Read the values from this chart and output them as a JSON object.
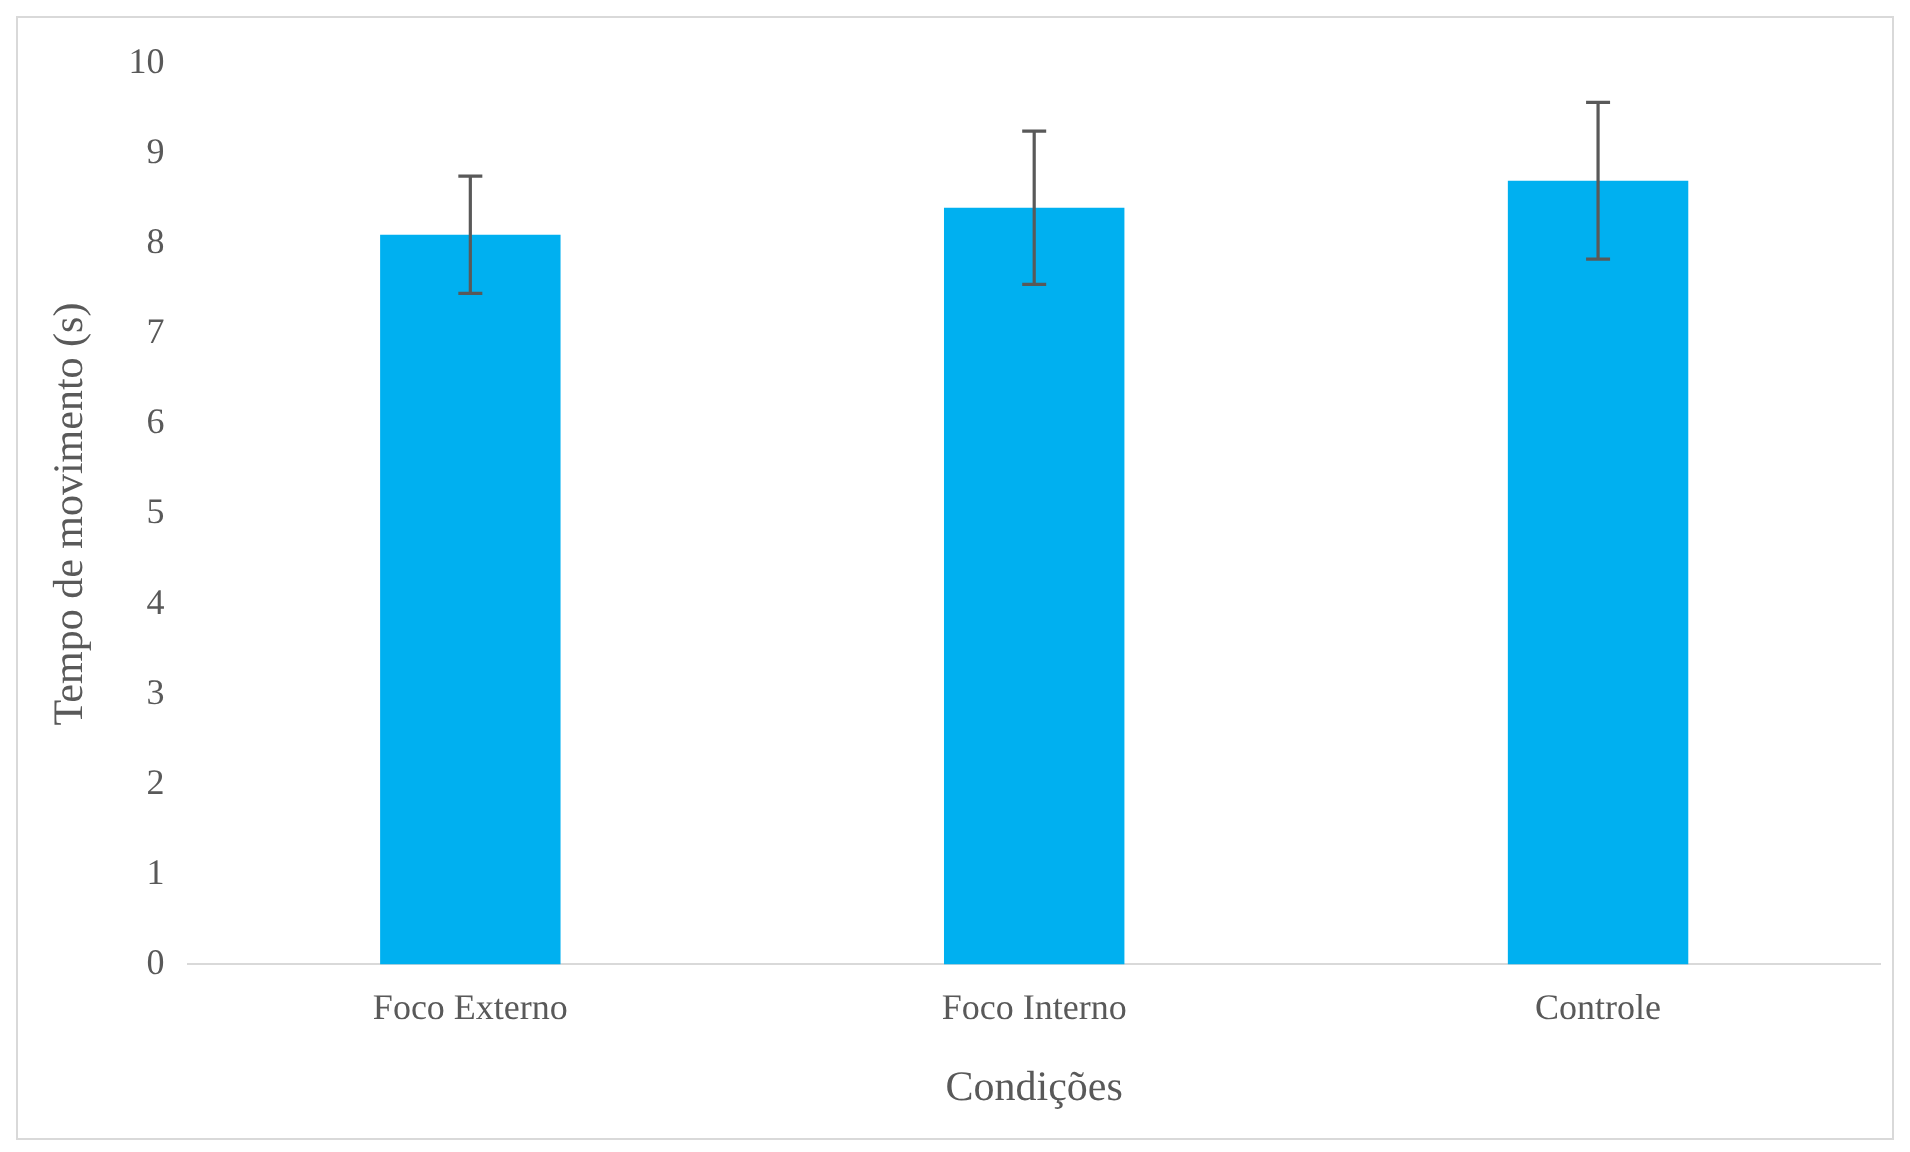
{
  "chart_data": {
    "type": "bar",
    "xlabel": "Condições",
    "ylabel": "Tempo de movimento (s)",
    "categories": [
      "Foco Externo",
      "Foco Interno",
      "Controle"
    ],
    "values": [
      8.1,
      8.4,
      8.7
    ],
    "errors": [
      0.65,
      0.85,
      0.87
    ],
    "color": "#00b0f0",
    "ylim": [
      0,
      10
    ],
    "yticks": [
      0,
      1,
      2,
      3,
      4,
      5,
      6,
      7,
      8,
      9,
      10
    ],
    "grid": false,
    "legend": false
  }
}
